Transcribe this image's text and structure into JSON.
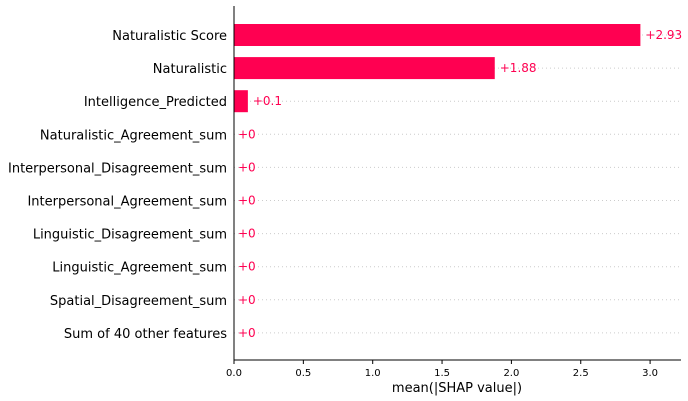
{
  "chart_data": {
    "type": "bar",
    "orientation": "horizontal",
    "categories": [
      "Naturalistic Score",
      "Naturalistic",
      "Intelligence_Predicted",
      "Naturalistic_Agreement_sum",
      "Interpersonal_Disagreement_sum",
      "Interpersonal_Agreement_sum",
      "Linguistic_Disagreement_sum",
      "Linguistic_Agreement_sum",
      "Spatial_Disagreement_sum",
      "Sum of 40 other features"
    ],
    "values": [
      2.93,
      1.88,
      0.1,
      0,
      0,
      0,
      0,
      0,
      0,
      0
    ],
    "value_labels": [
      "+2.93",
      "+1.88",
      "+0.1",
      "+0",
      "+0",
      "+0",
      "+0",
      "+0",
      "+0",
      "+0"
    ],
    "xlabel": "mean(|SHAP value|)",
    "ylabel": "",
    "title": "",
    "xlim": [
      0,
      3.2
    ],
    "xticks": [
      0.0,
      0.5,
      1.0,
      1.5,
      2.0,
      2.5,
      3.0
    ],
    "xtick_labels": [
      "0.0",
      "0.5",
      "1.0",
      "1.5",
      "2.0",
      "2.5",
      "3.0"
    ],
    "bar_color": "#ff0051",
    "grid": "dotted horizontal guides"
  }
}
